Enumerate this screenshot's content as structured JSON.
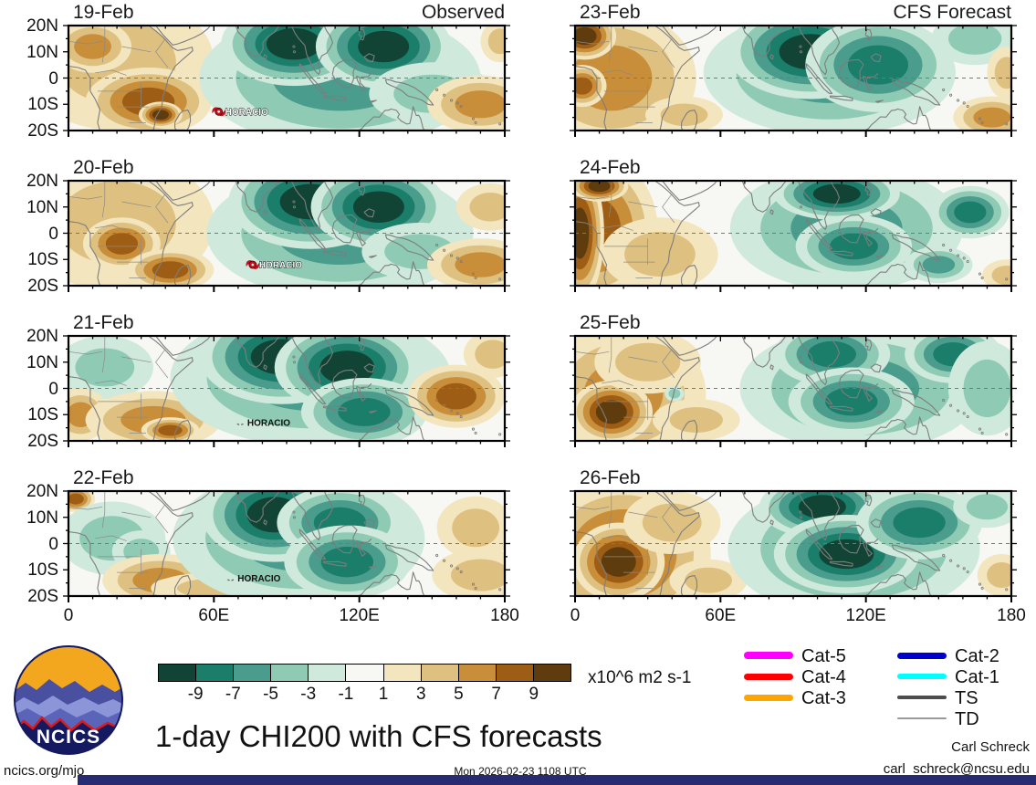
{
  "branding": {
    "logo_text": "NCICS",
    "site": "ncics.org/mjo",
    "timestamp": "Mon 2026-02-23 1108 UTC",
    "credit_name": "Carl Schreck",
    "credit_email": "carl_schreck@ncsu.edu"
  },
  "chart_data": {
    "type": "heatmap",
    "title": "1-day CHI200 with CFS forecasts",
    "units": "x10^6 m2 s-1",
    "lon_range": [
      0,
      180
    ],
    "lat_range": [
      -20,
      20
    ],
    "lon_ticks": [
      "0",
      "60E",
      "120E",
      "180"
    ],
    "lat_ticks": [
      "20N",
      "10N",
      "0",
      "10S",
      "20S"
    ],
    "colorbar_ticks": [
      "-9",
      "-7",
      "-5",
      "-3",
      "-1",
      "1",
      "3",
      "5",
      "7",
      "9"
    ],
    "palette": [
      "#124435",
      "#1b7e6a",
      "#4a9c8c",
      "#8fcbb4",
      "#cfe9dd",
      "#f7f7f4",
      "#f3e5bd",
      "#dec181",
      "#c98e39",
      "#9e5d15",
      "#5e3c0e"
    ],
    "columns": [
      {
        "label": "Observed"
      },
      {
        "label": "CFS Forecast"
      }
    ],
    "legend": [
      {
        "label": "Cat-5",
        "color": "#ff00ff",
        "thickness": 8,
        "col": 0
      },
      {
        "label": "Cat-4",
        "color": "#ff0000",
        "thickness": 7,
        "col": 0
      },
      {
        "label": "Cat-3",
        "color": "#ffa500",
        "thickness": 7,
        "col": 0
      },
      {
        "label": "Cat-2",
        "color": "#0000cc",
        "thickness": 7,
        "col": 1
      },
      {
        "label": "Cat-1",
        "color": "#00ffff",
        "thickness": 6,
        "col": 1
      },
      {
        "label": "TS",
        "color": "#4d4d4d",
        "thickness": 3.5,
        "col": 1
      },
      {
        "label": "TD",
        "color": "#9a9a9a",
        "thickness": 1.5,
        "col": 1
      }
    ],
    "panels": [
      {
        "date": "19-Feb",
        "column": 0,
        "storms": [
          {
            "name": "HORACIO",
            "lon": 62,
            "lat": -12.8,
            "style": "hurricane"
          }
        ],
        "anomalies": [
          {
            "lon": 20,
            "lat": 6,
            "rx": 40,
            "ry": 26,
            "sign": 1,
            "depth": 2
          },
          {
            "lon": 10,
            "lat": 12,
            "rx": 16,
            "ry": 10,
            "sign": 1,
            "depth": 3
          },
          {
            "lon": 33,
            "lat": -9,
            "rx": 26,
            "ry": 13,
            "sign": 1,
            "depth": 4
          },
          {
            "lon": 38,
            "lat": -14,
            "rx": 9,
            "ry": 5,
            "sign": 1,
            "depth": 5
          },
          {
            "lon": 112,
            "lat": 0,
            "rx": 58,
            "ry": 26,
            "sign": -1,
            "depth": 3
          },
          {
            "lon": 93,
            "lat": 13,
            "rx": 30,
            "ry": 16,
            "sign": -1,
            "depth": 5
          },
          {
            "lon": 130,
            "lat": 12,
            "rx": 28,
            "ry": 16,
            "sign": -1,
            "depth": 5
          },
          {
            "lon": 150,
            "lat": -6,
            "rx": 26,
            "ry": 12,
            "sign": -1,
            "depth": 2
          },
          {
            "lon": 170,
            "lat": -10,
            "rx": 22,
            "ry": 11,
            "sign": 1,
            "depth": 3
          },
          {
            "lon": 178,
            "lat": 14,
            "rx": 8,
            "ry": 8,
            "sign": 1,
            "depth": 2
          }
        ]
      },
      {
        "date": "20-Feb",
        "column": 0,
        "storms": [
          {
            "name": "HORACIO",
            "lon": 76,
            "lat": -12,
            "style": "hurricane"
          }
        ],
        "anomalies": [
          {
            "lon": 20,
            "lat": 4,
            "rx": 40,
            "ry": 26,
            "sign": 1,
            "depth": 2
          },
          {
            "lon": 22,
            "lat": -4,
            "rx": 16,
            "ry": 10,
            "sign": 1,
            "depth": 4
          },
          {
            "lon": 42,
            "lat": -14,
            "rx": 18,
            "ry": 8,
            "sign": 1,
            "depth": 4
          },
          {
            "lon": 112,
            "lat": 0,
            "rx": 55,
            "ry": 25,
            "sign": -1,
            "depth": 3
          },
          {
            "lon": 100,
            "lat": 12,
            "rx": 34,
            "ry": 18,
            "sign": -1,
            "depth": 5
          },
          {
            "lon": 128,
            "lat": 10,
            "rx": 28,
            "ry": 16,
            "sign": -1,
            "depth": 5
          },
          {
            "lon": 145,
            "lat": -7,
            "rx": 24,
            "ry": 11,
            "sign": -1,
            "depth": 2
          },
          {
            "lon": 170,
            "lat": -12,
            "rx": 22,
            "ry": 10,
            "sign": 1,
            "depth": 3
          },
          {
            "lon": 174,
            "lat": 10,
            "rx": 14,
            "ry": 9,
            "sign": 1,
            "depth": 2
          }
        ]
      },
      {
        "date": "21-Feb",
        "column": 0,
        "storms": [
          {
            "name": "HORACIO",
            "lon": 73,
            "lat": -12.8,
            "style": "remnant"
          }
        ],
        "anomalies": [
          {
            "lon": 15,
            "lat": 8,
            "rx": 20,
            "ry": 12,
            "sign": -1,
            "depth": 2
          },
          {
            "lon": 5,
            "lat": -10,
            "rx": 12,
            "ry": 10,
            "sign": 1,
            "depth": 3
          },
          {
            "lon": 35,
            "lat": -12,
            "rx": 28,
            "ry": 11,
            "sign": 1,
            "depth": 3
          },
          {
            "lon": 42,
            "lat": -16,
            "rx": 12,
            "ry": 5,
            "sign": 1,
            "depth": 4
          },
          {
            "lon": 100,
            "lat": 4,
            "rx": 58,
            "ry": 26,
            "sign": -1,
            "depth": 3
          },
          {
            "lon": 88,
            "lat": 12,
            "rx": 34,
            "ry": 18,
            "sign": -1,
            "depth": 5
          },
          {
            "lon": 115,
            "lat": 8,
            "rx": 30,
            "ry": 17,
            "sign": -1,
            "depth": 5
          },
          {
            "lon": 122,
            "lat": -9,
            "rx": 26,
            "ry": 13,
            "sign": -1,
            "depth": 4
          },
          {
            "lon": 160,
            "lat": -3,
            "rx": 20,
            "ry": 12,
            "sign": 1,
            "depth": 4
          },
          {
            "lon": 175,
            "lat": 13,
            "rx": 12,
            "ry": 9,
            "sign": 1,
            "depth": 2
          }
        ]
      },
      {
        "date": "22-Feb",
        "column": 0,
        "storms": [
          {
            "name": "HORACIO",
            "lon": 69,
            "lat": -13,
            "style": "remnant"
          }
        ],
        "anomalies": [
          {
            "lon": 3,
            "lat": 17,
            "rx": 8,
            "ry": 5,
            "sign": 1,
            "depth": 4
          },
          {
            "lon": 18,
            "lat": 2,
            "rx": 22,
            "ry": 14,
            "sign": -1,
            "depth": 2
          },
          {
            "lon": 30,
            "lat": -3,
            "rx": 12,
            "ry": 8,
            "sign": -1,
            "depth": 2
          },
          {
            "lon": 38,
            "lat": -14,
            "rx": 24,
            "ry": 10,
            "sign": 1,
            "depth": 3
          },
          {
            "lon": 44,
            "lat": -17,
            "rx": 10,
            "ry": 4,
            "sign": 1,
            "depth": 4
          },
          {
            "lon": 60,
            "lat": -17,
            "rx": 25,
            "ry": 6,
            "sign": 1,
            "depth": 2
          },
          {
            "lon": 95,
            "lat": 2,
            "rx": 52,
            "ry": 26,
            "sign": -1,
            "depth": 3
          },
          {
            "lon": 85,
            "lat": 11,
            "rx": 30,
            "ry": 18,
            "sign": -1,
            "depth": 5
          },
          {
            "lon": 112,
            "lat": 8,
            "rx": 26,
            "ry": 14,
            "sign": -1,
            "depth": 4
          },
          {
            "lon": 115,
            "lat": -7,
            "rx": 26,
            "ry": 14,
            "sign": -1,
            "depth": 4
          },
          {
            "lon": 168,
            "lat": 6,
            "rx": 16,
            "ry": 12,
            "sign": 1,
            "depth": 2
          },
          {
            "lon": 170,
            "lat": -12,
            "rx": 20,
            "ry": 10,
            "sign": 1,
            "depth": 2
          }
        ]
      },
      {
        "date": "23-Feb",
        "column": 1,
        "storms": [],
        "anomalies": [
          {
            "lon": 15,
            "lat": 0,
            "rx": 35,
            "ry": 26,
            "sign": 1,
            "depth": 3
          },
          {
            "lon": 4,
            "lat": 16,
            "rx": 13,
            "ry": 9,
            "sign": 1,
            "depth": 5
          },
          {
            "lon": 3,
            "lat": -3,
            "rx": 10,
            "ry": 8,
            "sign": 1,
            "depth": 4
          },
          {
            "lon": 45,
            "lat": -14,
            "rx": 16,
            "ry": 7,
            "sign": 1,
            "depth": 2
          },
          {
            "lon": 105,
            "lat": 2,
            "rx": 52,
            "ry": 24,
            "sign": -1,
            "depth": 3
          },
          {
            "lon": 97,
            "lat": 10,
            "rx": 34,
            "ry": 18,
            "sign": -1,
            "depth": 5
          },
          {
            "lon": 125,
            "lat": 5,
            "rx": 30,
            "ry": 18,
            "sign": -1,
            "depth": 4
          },
          {
            "lon": 165,
            "lat": 15,
            "rx": 18,
            "ry": 10,
            "sign": -1,
            "depth": 2
          },
          {
            "lon": 172,
            "lat": -15,
            "rx": 16,
            "ry": 8,
            "sign": 1,
            "depth": 3
          },
          {
            "lon": 178,
            "lat": 2,
            "rx": 8,
            "ry": 10,
            "sign": 1,
            "depth": 2
          }
        ]
      },
      {
        "date": "24-Feb",
        "column": 1,
        "storms": [],
        "anomalies": [
          {
            "lon": 8,
            "lat": 2,
            "rx": 26,
            "ry": 28,
            "sign": 1,
            "depth": 4
          },
          {
            "lon": 2,
            "lat": 0,
            "rx": 10,
            "ry": 26,
            "sign": 1,
            "depth": 5
          },
          {
            "lon": 10,
            "lat": 18,
            "rx": 12,
            "ry": 6,
            "sign": 1,
            "depth": 5
          },
          {
            "lon": 35,
            "lat": -8,
            "rx": 24,
            "ry": 14,
            "sign": 1,
            "depth": 2
          },
          {
            "lon": 112,
            "lat": 2,
            "rx": 48,
            "ry": 24,
            "sign": -1,
            "depth": 3
          },
          {
            "lon": 108,
            "lat": 15,
            "rx": 26,
            "ry": 10,
            "sign": -1,
            "depth": 5
          },
          {
            "lon": 115,
            "lat": -5,
            "rx": 24,
            "ry": 12,
            "sign": -1,
            "depth": 4
          },
          {
            "lon": 163,
            "lat": 8,
            "rx": 16,
            "ry": 10,
            "sign": -1,
            "depth": 4
          },
          {
            "lon": 150,
            "lat": -12,
            "rx": 14,
            "ry": 7,
            "sign": -1,
            "depth": 3
          },
          {
            "lon": 178,
            "lat": -16,
            "rx": 10,
            "ry": 6,
            "sign": 1,
            "depth": 2
          }
        ]
      },
      {
        "date": "25-Feb",
        "column": 1,
        "storms": [],
        "anomalies": [
          {
            "lon": 20,
            "lat": -2,
            "rx": 34,
            "ry": 26,
            "sign": 1,
            "depth": 3
          },
          {
            "lon": 15,
            "lat": -9,
            "rx": 17,
            "ry": 12,
            "sign": 1,
            "depth": 5
          },
          {
            "lon": 30,
            "lat": 10,
            "rx": 22,
            "ry": 12,
            "sign": 1,
            "depth": 2
          },
          {
            "lon": 50,
            "lat": -12,
            "rx": 18,
            "ry": 8,
            "sign": 1,
            "depth": 2
          },
          {
            "lon": 118,
            "lat": 0,
            "rx": 50,
            "ry": 24,
            "sign": -1,
            "depth": 3
          },
          {
            "lon": 106,
            "lat": 13,
            "rx": 24,
            "ry": 12,
            "sign": -1,
            "depth": 4
          },
          {
            "lon": 114,
            "lat": -5,
            "rx": 26,
            "ry": 13,
            "sign": -1,
            "depth": 4
          },
          {
            "lon": 156,
            "lat": 13,
            "rx": 20,
            "ry": 11,
            "sign": -1,
            "depth": 4
          },
          {
            "lon": 170,
            "lat": 0,
            "rx": 16,
            "ry": 18,
            "sign": -1,
            "depth": 2
          },
          {
            "lon": 41,
            "lat": -2,
            "rx": 4,
            "ry": 3,
            "sign": -1,
            "depth": 2
          }
        ]
      },
      {
        "date": "26-Feb",
        "column": 1,
        "storms": [],
        "anomalies": [
          {
            "lon": 20,
            "lat": -4,
            "rx": 36,
            "ry": 28,
            "sign": 1,
            "depth": 4
          },
          {
            "lon": 18,
            "lat": -7,
            "rx": 19,
            "ry": 15,
            "sign": 1,
            "depth": 5
          },
          {
            "lon": 40,
            "lat": 8,
            "rx": 20,
            "ry": 12,
            "sign": 1,
            "depth": 2
          },
          {
            "lon": 55,
            "lat": -14,
            "rx": 16,
            "ry": 8,
            "sign": 1,
            "depth": 2
          },
          {
            "lon": 115,
            "lat": -2,
            "rx": 52,
            "ry": 26,
            "sign": -1,
            "depth": 3
          },
          {
            "lon": 102,
            "lat": 14,
            "rx": 26,
            "ry": 12,
            "sign": -1,
            "depth": 5
          },
          {
            "lon": 112,
            "lat": -4,
            "rx": 30,
            "ry": 15,
            "sign": -1,
            "depth": 5
          },
          {
            "lon": 142,
            "lat": 8,
            "rx": 26,
            "ry": 14,
            "sign": -1,
            "depth": 4
          },
          {
            "lon": 170,
            "lat": 14,
            "rx": 14,
            "ry": 8,
            "sign": -1,
            "depth": 2
          },
          {
            "lon": 176,
            "lat": -12,
            "rx": 10,
            "ry": 8,
            "sign": 1,
            "depth": 2
          }
        ]
      }
    ]
  }
}
